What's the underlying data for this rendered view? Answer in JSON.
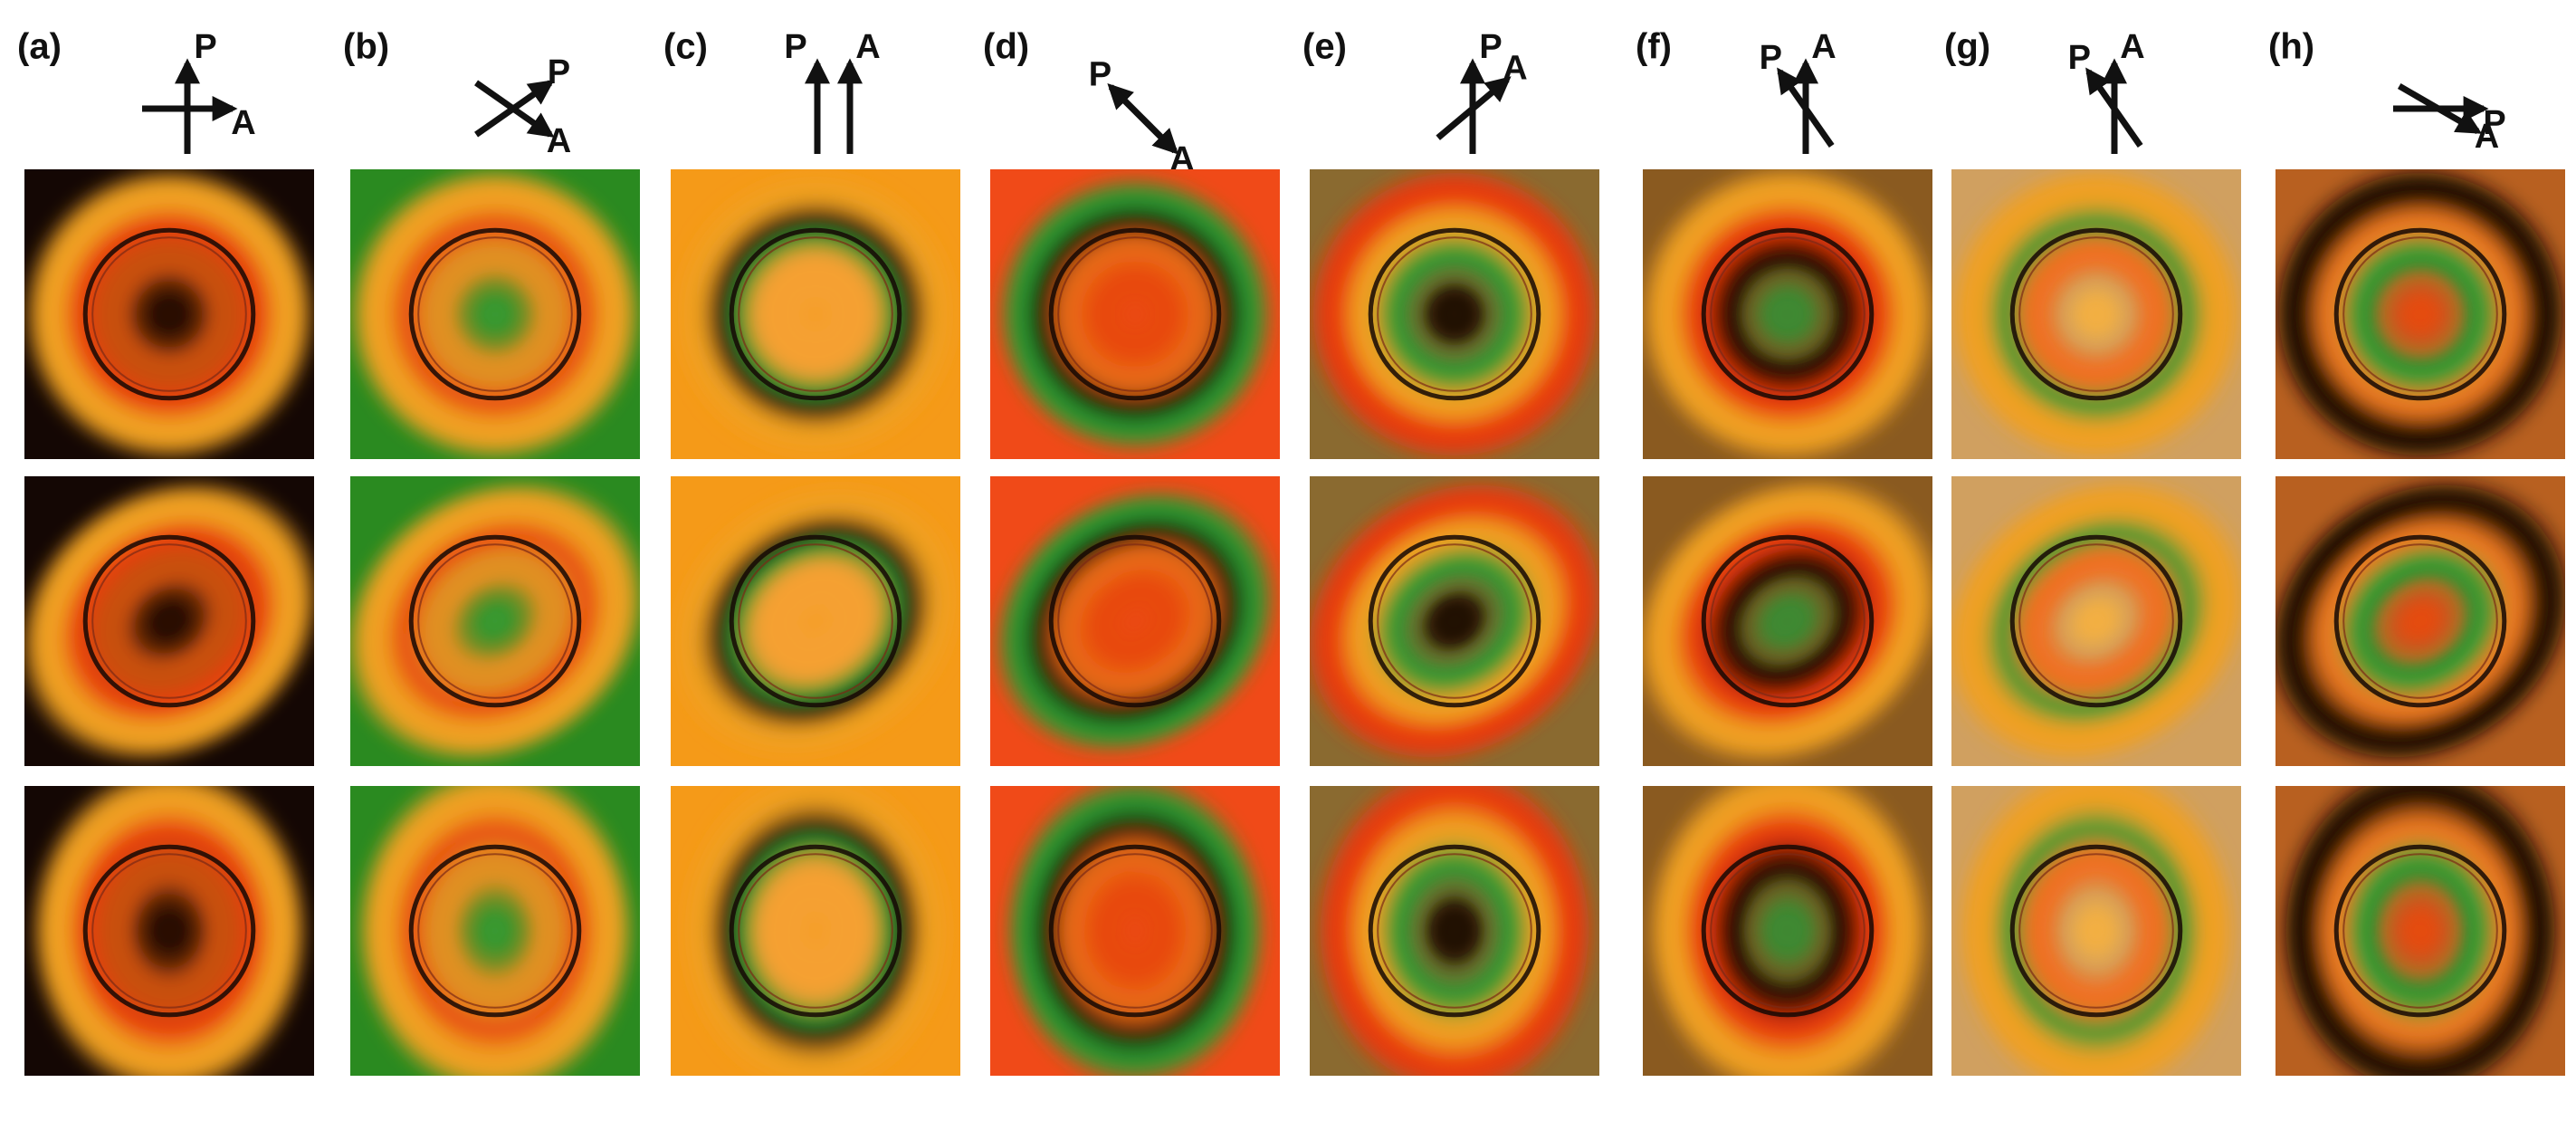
{
  "panels": [
    {
      "label": "(a)",
      "polarizer": "P",
      "analyzer": "A"
    },
    {
      "label": "(b)",
      "polarizer": "P",
      "analyzer": "A"
    },
    {
      "label": "(c)",
      "polarizer": "P",
      "analyzer": "A"
    },
    {
      "label": "(d)",
      "polarizer": "P",
      "analyzer": "A"
    },
    {
      "label": "(e)",
      "polarizer": "P",
      "analyzer": "A"
    },
    {
      "label": "(f)",
      "polarizer": "P",
      "analyzer": "A"
    },
    {
      "label": "(g)",
      "polarizer": "P",
      "analyzer": "A"
    },
    {
      "label": "(h)",
      "polarizer": "P",
      "analyzer": "A"
    }
  ]
}
